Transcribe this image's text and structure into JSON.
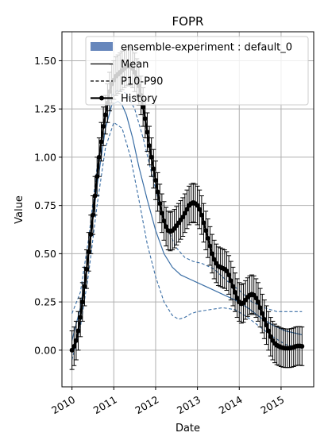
{
  "chart_data": {
    "type": "line",
    "title": "FOPR",
    "xlabel": "Date",
    "ylabel": "Value",
    "x_ticks": [
      "2010",
      "2011",
      "2012",
      "2013",
      "2014",
      "2015"
    ],
    "y_ticks": [
      "0.00",
      "0.25",
      "0.50",
      "0.75",
      "1.00",
      "1.25",
      "1.50"
    ],
    "xlim": [
      2009.76,
      2015.78
    ],
    "ylim": [
      -0.19,
      1.65
    ],
    "grid": true,
    "legend_position": "top-right",
    "legend": [
      {
        "label": "ensemble-experiment : default_0",
        "style": "patch",
        "color": "#4c72b0"
      },
      {
        "label": "Mean",
        "style": "solid"
      },
      {
        "label": "P10-P90",
        "style": "dashed"
      },
      {
        "label": "History",
        "style": "dot-line"
      }
    ],
    "colors": {
      "ensemble": "#3a6ea5",
      "history": "#000000",
      "grid": "#b0b0b0",
      "legend_patch": "#4c72b0"
    },
    "series": [
      {
        "name": "Mean",
        "style": "solid",
        "x": [
          2010.0,
          2010.2,
          2010.4,
          2010.6,
          2010.8,
          2010.95,
          2011.1,
          2011.2,
          2011.3,
          2011.45,
          2011.6,
          2011.8,
          2012.0,
          2012.2,
          2012.4,
          2012.6,
          2012.8,
          2013.0,
          2013.3,
          2013.6,
          2013.9,
          2014.2,
          2014.5,
          2014.8,
          2015.1,
          2015.5
        ],
        "y": [
          0.05,
          0.22,
          0.5,
          0.85,
          1.15,
          1.27,
          1.29,
          1.27,
          1.22,
          1.1,
          0.95,
          0.78,
          0.62,
          0.5,
          0.43,
          0.39,
          0.37,
          0.35,
          0.32,
          0.29,
          0.26,
          0.22,
          0.17,
          0.13,
          0.1,
          0.08
        ]
      },
      {
        "name": "P10",
        "style": "dashed",
        "x": [
          2010.0,
          2010.2,
          2010.4,
          2010.6,
          2010.8,
          2011.0,
          2011.2,
          2011.4,
          2011.6,
          2011.8,
          2012.0,
          2012.2,
          2012.4,
          2012.55,
          2012.7,
          2012.85,
          2013.0,
          2013.3,
          2013.6,
          2013.9,
          2014.2,
          2014.5,
          2014.8,
          2015.1,
          2015.5
        ],
        "y": [
          -0.05,
          0.12,
          0.4,
          0.75,
          1.05,
          1.18,
          1.15,
          1.0,
          0.78,
          0.55,
          0.38,
          0.25,
          0.18,
          0.16,
          0.17,
          0.19,
          0.2,
          0.21,
          0.22,
          0.21,
          0.17,
          0.12,
          0.07,
          0.03,
          0.01
        ]
      },
      {
        "name": "P90",
        "style": "dashed",
        "x": [
          2010.0,
          2010.2,
          2010.4,
          2010.6,
          2010.8,
          2010.95,
          2011.1,
          2011.3,
          2011.5,
          2011.7,
          2011.9,
          2012.1,
          2012.3,
          2012.5,
          2012.7,
          2012.9,
          2013.1,
          2013.4,
          2013.7,
          2014.0,
          2014.3,
          2014.6,
          2014.9,
          2015.2,
          2015.5
        ],
        "y": [
          0.19,
          0.3,
          0.58,
          0.95,
          1.22,
          1.32,
          1.35,
          1.33,
          1.25,
          1.1,
          0.92,
          0.75,
          0.62,
          0.53,
          0.48,
          0.46,
          0.45,
          0.42,
          0.36,
          0.31,
          0.25,
          0.22,
          0.2,
          0.2,
          0.2
        ]
      },
      {
        "name": "History",
        "style": "dot-line",
        "error_bar": 0.1,
        "x": [
          2010.0,
          2010.05,
          2010.1,
          2010.15,
          2010.2,
          2010.25,
          2010.3,
          2010.35,
          2010.4,
          2010.45,
          2010.5,
          2010.55,
          2010.6,
          2010.65,
          2010.7,
          2010.75,
          2010.8,
          2010.85,
          2010.9,
          2010.95,
          2011.0,
          2011.05,
          2011.1,
          2011.15,
          2011.2,
          2011.25,
          2011.3,
          2011.35,
          2011.4,
          2011.45,
          2011.5,
          2011.55,
          2011.6,
          2011.65,
          2011.7,
          2011.75,
          2011.8,
          2011.85,
          2011.9,
          2011.95,
          2012.0,
          2012.05,
          2012.1,
          2012.15,
          2012.2,
          2012.25,
          2012.3,
          2012.35,
          2012.4,
          2012.45,
          2012.5,
          2012.55,
          2012.6,
          2012.65,
          2012.7,
          2012.75,
          2012.8,
          2012.85,
          2012.9,
          2012.95,
          2013.0,
          2013.05,
          2013.1,
          2013.15,
          2013.2,
          2013.25,
          2013.3,
          2013.35,
          2013.4,
          2013.45,
          2013.5,
          2013.55,
          2013.6,
          2013.65,
          2013.7,
          2013.75,
          2013.8,
          2013.85,
          2013.9,
          2013.95,
          2014.0,
          2014.05,
          2014.1,
          2014.15,
          2014.2,
          2014.25,
          2014.3,
          2014.35,
          2014.4,
          2014.45,
          2014.5,
          2014.55,
          2014.6,
          2014.65,
          2014.7,
          2014.75,
          2014.8,
          2014.85,
          2014.9,
          2014.95,
          2015.0,
          2015.05,
          2015.1,
          2015.15,
          2015.2,
          2015.25,
          2015.3,
          2015.35,
          2015.4,
          2015.45,
          2015.5
        ],
        "y": [
          0.0,
          0.02,
          0.05,
          0.1,
          0.17,
          0.25,
          0.33,
          0.42,
          0.51,
          0.6,
          0.7,
          0.8,
          0.9,
          1.0,
          1.08,
          1.16,
          1.22,
          1.28,
          1.34,
          1.38,
          1.4,
          1.42,
          1.43,
          1.44,
          1.45,
          1.46,
          1.47,
          1.475,
          1.47,
          1.46,
          1.44,
          1.41,
          1.37,
          1.32,
          1.26,
          1.2,
          1.13,
          1.06,
          1.0,
          0.94,
          0.88,
          0.82,
          0.76,
          0.71,
          0.67,
          0.64,
          0.62,
          0.615,
          0.62,
          0.63,
          0.645,
          0.66,
          0.675,
          0.69,
          0.71,
          0.73,
          0.75,
          0.76,
          0.765,
          0.76,
          0.75,
          0.73,
          0.7,
          0.66,
          0.62,
          0.58,
          0.54,
          0.5,
          0.47,
          0.45,
          0.435,
          0.43,
          0.425,
          0.42,
          0.41,
          0.39,
          0.36,
          0.33,
          0.3,
          0.27,
          0.25,
          0.24,
          0.245,
          0.26,
          0.275,
          0.285,
          0.29,
          0.285,
          0.27,
          0.25,
          0.22,
          0.19,
          0.16,
          0.13,
          0.1,
          0.07,
          0.05,
          0.035,
          0.025,
          0.02,
          0.015,
          0.012,
          0.01,
          0.01,
          0.01,
          0.012,
          0.015,
          0.02,
          0.022,
          0.022,
          0.02
        ]
      }
    ]
  }
}
